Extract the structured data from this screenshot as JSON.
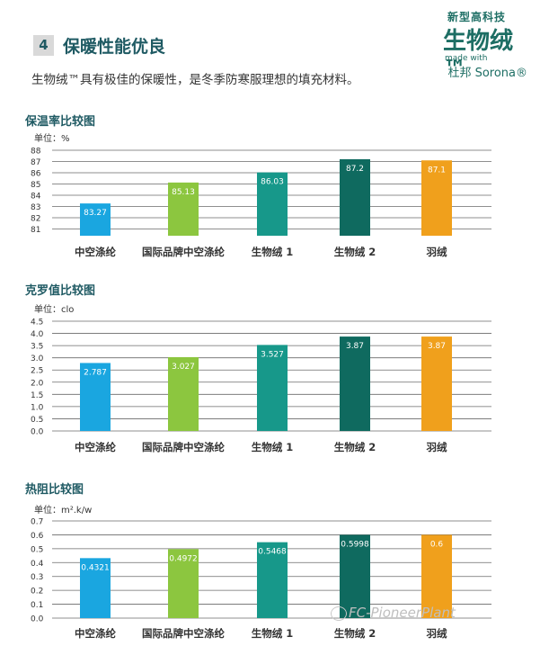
{
  "header": {
    "section_number": "4",
    "section_title": "保暖性能优良",
    "intro": "生物绒™具有极佳的保暖性，是冬季防寒服理想的填充材料。",
    "brand": {
      "line1": "新型高科技",
      "line2": "生物绒™",
      "line3": "made with",
      "line4": "杜邦 Sorona®"
    }
  },
  "colors": {
    "title": "#1f5a63",
    "bars": [
      "#1aa6e0",
      "#8cc63f",
      "#17988a",
      "#0f6a5f",
      "#f0a01c"
    ]
  },
  "charts": [
    {
      "title": "保温率比较图",
      "unit": "单位：%"
    },
    {
      "title": "克罗值比较图",
      "unit": "单位：clo"
    },
    {
      "title": "热阻比较图",
      "unit": "单位：m².k/w"
    }
  ],
  "chart_data": [
    {
      "type": "bar",
      "title": "保温率比较图",
      "ylabel": "单位：%",
      "categories": [
        "中空涤纶",
        "国际品牌中空涤纶",
        "生物绒 1",
        "生物绒 2",
        "羽绒"
      ],
      "values": [
        83.27,
        85.13,
        86.03,
        87.2,
        87.1
      ],
      "value_labels": [
        "83.27",
        "85.13",
        "86.03",
        "87.2",
        "87.1"
      ],
      "ylim": [
        80.4,
        88
      ],
      "yticks": [
        "88",
        "87",
        "86",
        "85",
        "84",
        "83",
        "82",
        "81"
      ],
      "ytick_values": [
        88,
        87,
        86,
        85,
        84,
        83,
        82,
        81
      ],
      "grid": true
    },
    {
      "type": "bar",
      "title": "克罗值比较图",
      "ylabel": "单位：clo",
      "categories": [
        "中空涤纶",
        "国际品牌中空涤纶",
        "生物绒 1",
        "生物绒 2",
        "羽绒"
      ],
      "values": [
        2.787,
        3.027,
        3.527,
        3.87,
        3.87
      ],
      "value_labels": [
        "2.787",
        "3.027",
        "3.527",
        "3.87",
        "3.87"
      ],
      "ylim": [
        0,
        4.5
      ],
      "yticks": [
        "4.5",
        "4.0",
        "3.5",
        "3.0",
        "2.5",
        "2.0",
        "1.5",
        "1.0",
        "0.5",
        "0.0"
      ],
      "ytick_values": [
        4.5,
        4.0,
        3.5,
        3.0,
        2.5,
        2.0,
        1.5,
        1.0,
        0.5,
        0.0
      ],
      "grid": true
    },
    {
      "type": "bar",
      "title": "热阻比较图",
      "ylabel": "单位：m².k/w",
      "categories": [
        "中空涤纶",
        "国际品牌中空涤纶",
        "生物绒 1",
        "生物绒 2",
        "羽绒"
      ],
      "values": [
        0.4321,
        0.4972,
        0.5468,
        0.5998,
        0.6
      ],
      "value_labels": [
        "0.4321",
        "0.4972",
        "0.5468",
        "0.5998",
        "0.6"
      ],
      "ylim": [
        0,
        0.7
      ],
      "yticks": [
        "0.7",
        "0.6",
        "0.5",
        "0.4",
        "0.3",
        "0.2",
        "0.1",
        "0.0"
      ],
      "ytick_values": [
        0.7,
        0.6,
        0.5,
        0.4,
        0.3,
        0.2,
        0.1,
        0.0
      ],
      "grid": true
    }
  ],
  "watermark": "FC-PioneerPlant"
}
